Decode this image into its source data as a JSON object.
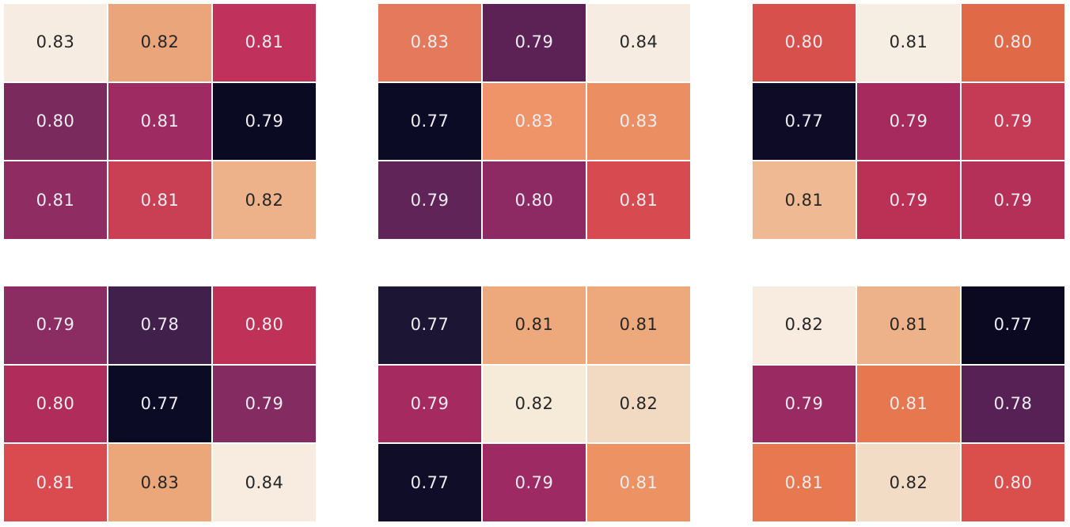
{
  "background_color": "#ffffff",
  "palette": {
    "dark_text": "#262626",
    "light_text": "#ededf2",
    "grid_line": "#ffffff"
  },
  "chart_data": {
    "type": "heatmap",
    "title": "",
    "xlabel": "",
    "ylabel": "",
    "layout": "2 rows x 3 columns of 3x3 annotated heatmaps, rocket colormap normalized per subplot, no axis ticks, no colorbar, white cell separators",
    "value_format": "2 decimal places",
    "subplots": [
      {
        "position": "top-left",
        "values": [
          [
            0.83,
            0.82,
            0.81
          ],
          [
            0.8,
            0.81,
            0.79
          ],
          [
            0.81,
            0.81,
            0.82
          ]
        ],
        "colors": [
          [
            "#f7ece1",
            "#eba57b",
            "#c0315c"
          ],
          [
            "#7b2a5e",
            "#9e2b61",
            "#0a0a22"
          ],
          [
            "#8f2d62",
            "#c93f54",
            "#edb289"
          ]
        ],
        "text": [
          [
            "d",
            "d",
            "l"
          ],
          [
            "l",
            "l",
            "l"
          ],
          [
            "l",
            "l",
            "d"
          ]
        ]
      },
      {
        "position": "top-middle",
        "values": [
          [
            0.83,
            0.79,
            0.84
          ],
          [
            0.77,
            0.83,
            0.83
          ],
          [
            0.79,
            0.8,
            0.81
          ]
        ],
        "colors": [
          [
            "#e5795b",
            "#5c2255",
            "#f6ece1"
          ],
          [
            "#0c0b25",
            "#ee9468",
            "#eb8f63"
          ],
          [
            "#612459",
            "#8e2a63",
            "#d74a50"
          ]
        ],
        "text": [
          [
            "l",
            "l",
            "d"
          ],
          [
            "l",
            "l",
            "l"
          ],
          [
            "l",
            "l",
            "l"
          ]
        ]
      },
      {
        "position": "top-right",
        "values": [
          [
            0.8,
            0.81,
            0.8
          ],
          [
            0.77,
            0.79,
            0.79
          ],
          [
            0.81,
            0.79,
            0.79
          ]
        ],
        "colors": [
          [
            "#d8504c",
            "#f7eee3",
            "#e06a48"
          ],
          [
            "#0d0b26",
            "#a72a5e",
            "#c53b55"
          ],
          [
            "#efba93",
            "#bb3156",
            "#b43058"
          ]
        ],
        "text": [
          [
            "l",
            "d",
            "l"
          ],
          [
            "l",
            "l",
            "l"
          ],
          [
            "d",
            "l",
            "l"
          ]
        ]
      },
      {
        "position": "bottom-left",
        "values": [
          [
            0.79,
            0.78,
            0.8
          ],
          [
            0.8,
            0.77,
            0.79
          ],
          [
            0.81,
            0.83,
            0.84
          ]
        ],
        "colors": [
          [
            "#8b2c62",
            "#41204b",
            "#c03158"
          ],
          [
            "#b02d5b",
            "#0c0b26",
            "#842b61"
          ],
          [
            "#d94b4e",
            "#eba679",
            "#f7ecdf"
          ]
        ],
        "text": [
          [
            "l",
            "l",
            "l"
          ],
          [
            "l",
            "l",
            "l"
          ],
          [
            "l",
            "d",
            "d"
          ]
        ]
      },
      {
        "position": "bottom-middle",
        "values": [
          [
            0.77,
            0.81,
            0.81
          ],
          [
            0.79,
            0.82,
            0.82
          ],
          [
            0.77,
            0.79,
            0.81
          ]
        ],
        "colors": [
          [
            "#1c1634",
            "#eda97c",
            "#eda97c"
          ],
          [
            "#a52a60",
            "#f6ead9",
            "#f2d9c2"
          ],
          [
            "#100d29",
            "#9d2a62",
            "#ec9263"
          ]
        ],
        "text": [
          [
            "l",
            "d",
            "d"
          ],
          [
            "l",
            "d",
            "d"
          ],
          [
            "l",
            "l",
            "l"
          ]
        ]
      },
      {
        "position": "bottom-right",
        "values": [
          [
            0.82,
            0.81,
            0.77
          ],
          [
            0.79,
            0.81,
            0.78
          ],
          [
            0.81,
            0.82,
            0.8
          ]
        ],
        "colors": [
          [
            "#f7ecdf",
            "#eeb28b",
            "#0a0921"
          ],
          [
            "#992a62",
            "#e7774e",
            "#572156"
          ],
          [
            "#e8784f",
            "#f3dcc6",
            "#da4e4b"
          ]
        ],
        "text": [
          [
            "d",
            "d",
            "l"
          ],
          [
            "l",
            "l",
            "l"
          ],
          [
            "l",
            "d",
            "l"
          ]
        ]
      }
    ]
  }
}
